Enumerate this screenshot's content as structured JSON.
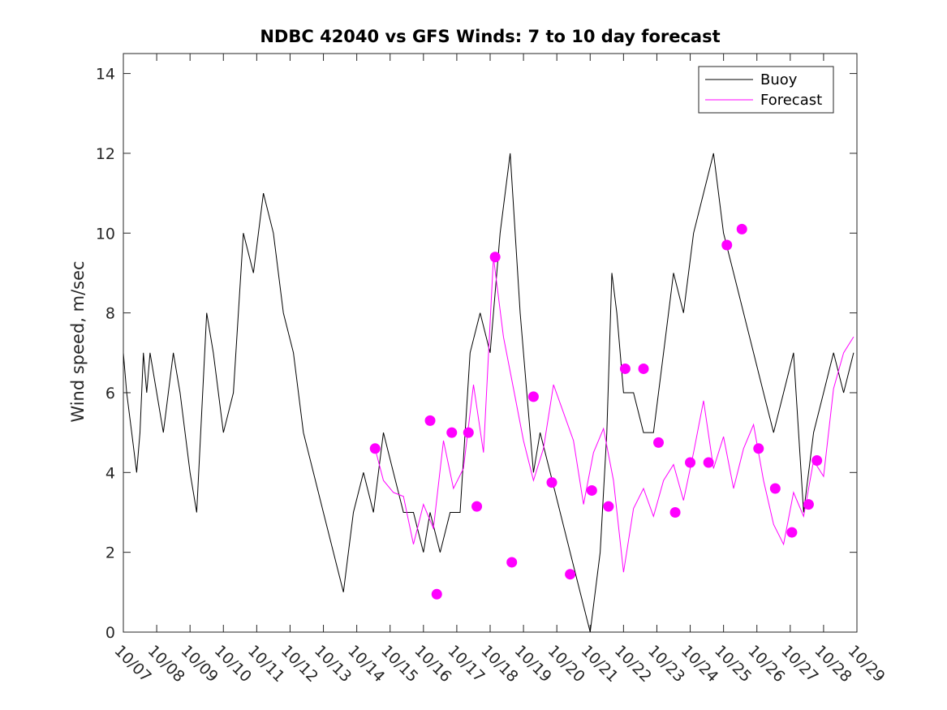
{
  "chart_data": {
    "type": "line",
    "title": "NDBC 42040 vs GFS Winds: 7 to 10 day forecast",
    "xlabel": "",
    "ylabel": "Wind speed, m/sec",
    "ylim": [
      0,
      14.5
    ],
    "yticks": [
      0,
      2,
      4,
      6,
      8,
      10,
      12,
      14
    ],
    "xlim": [
      0,
      22
    ],
    "xtick_labels": [
      "10/07",
      "10/08",
      "10/09",
      "10/10",
      "10/11",
      "10/12",
      "10/13",
      "10/14",
      "10/15",
      "10/16",
      "10/17",
      "10/18",
      "10/19",
      "10/20",
      "10/21",
      "10/22",
      "10/23",
      "10/24",
      "10/25",
      "10/26",
      "10/27",
      "10/28",
      "10/29"
    ],
    "legend": {
      "position": "top-right",
      "entries": [
        {
          "name": "Buoy",
          "color": "#000000"
        },
        {
          "name": "Forecast",
          "color": "#ff00ff"
        }
      ]
    },
    "series": [
      {
        "name": "Buoy",
        "color": "#000000",
        "x": [
          0,
          0.1,
          0.25,
          0.4,
          0.5,
          0.6,
          0.7,
          0.8,
          1,
          1.2,
          1.5,
          1.7,
          2,
          2.2,
          2.5,
          2.7,
          3,
          3.3,
          3.6,
          3.9,
          4.2,
          4.5,
          4.8,
          5.1,
          5.4,
          5.7,
          6,
          6.3,
          6.6,
          6.9,
          7.2,
          7.5,
          7.8,
          8.1,
          8.4,
          8.7,
          9,
          9.2,
          9.5,
          9.8,
          10.1,
          10.4,
          10.7,
          11,
          11.3,
          11.6,
          11.9,
          12.1,
          12.3,
          12.5,
          12.8,
          13.1,
          13.4,
          13.7,
          14,
          14.3,
          14.5,
          14.65,
          14.8,
          15,
          15.3,
          15.6,
          15.9,
          16.2,
          16.5,
          16.8,
          17.1,
          17.4,
          17.7,
          18,
          18.3,
          18.6,
          18.9,
          19.2,
          19.5,
          19.8,
          20.1,
          20.4,
          20.7,
          21,
          21.3,
          21.6,
          21.9
        ],
        "values": [
          7,
          6,
          5,
          4,
          5,
          7,
          6,
          7,
          6,
          5,
          7,
          6,
          4,
          3,
          8,
          7,
          5,
          6,
          10,
          9,
          11,
          10,
          8,
          7,
          5,
          4,
          3,
          2,
          1,
          3,
          4,
          3,
          5,
          4,
          3,
          3,
          2,
          3,
          2,
          3,
          3,
          7,
          8,
          7,
          10,
          12,
          8,
          6,
          4,
          5,
          4,
          3,
          2,
          1,
          0,
          2,
          5,
          9,
          8,
          6,
          6,
          5,
          5,
          7,
          9,
          8,
          10,
          11,
          12,
          10,
          9,
          8,
          7,
          6,
          5,
          6,
          7,
          3,
          5,
          6,
          7,
          6,
          7
        ]
      },
      {
        "name": "Forecast",
        "color": "#ff00ff",
        "x": [
          7.55,
          7.8,
          8.1,
          8.4,
          8.7,
          9.0,
          9.3,
          9.6,
          9.9,
          10.2,
          10.5,
          10.8,
          11.1,
          11.4,
          11.7,
          12.0,
          12.3,
          12.6,
          12.9,
          13.2,
          13.5,
          13.8,
          14.1,
          14.4,
          14.7,
          15.0,
          15.3,
          15.6,
          15.9,
          16.2,
          16.5,
          16.8,
          17.1,
          17.4,
          17.7,
          18.0,
          18.3,
          18.6,
          18.9,
          19.2,
          19.5,
          19.8,
          20.1,
          20.4,
          20.7,
          21.0,
          21.3,
          21.6,
          21.9
        ],
        "values": [
          4.6,
          3.8,
          3.5,
          3.4,
          2.2,
          3.2,
          2.6,
          4.8,
          3.6,
          4.1,
          6.2,
          4.5,
          9.4,
          7.4,
          6.1,
          4.8,
          3.8,
          4.6,
          6.2,
          5.5,
          4.8,
          3.2,
          4.5,
          5.1,
          3.8,
          1.5,
          3.1,
          3.6,
          2.9,
          3.8,
          4.2,
          3.3,
          4.5,
          5.8,
          4.1,
          4.9,
          3.6,
          4.6,
          5.2,
          3.8,
          2.7,
          2.2,
          3.5,
          2.9,
          4.3,
          3.9,
          6.1,
          7.0,
          7.4
        ]
      }
    ],
    "forecast_points": {
      "color": "#ff00ff",
      "x": [
        7.55,
        9.2,
        9.4,
        9.85,
        10.35,
        10.6,
        11.15,
        11.65,
        12.3,
        12.85,
        13.4,
        14.05,
        14.55,
        15.05,
        15.6,
        16.05,
        16.55,
        17.0,
        17.55,
        18.1,
        18.55,
        19.05,
        19.55,
        20.05,
        20.55,
        20.8
      ],
      "values": [
        4.6,
        5.3,
        0.95,
        5.0,
        5.0,
        3.15,
        9.4,
        1.75,
        5.9,
        3.75,
        1.45,
        3.55,
        3.15,
        6.6,
        6.6,
        4.75,
        3.0,
        4.25,
        4.25,
        9.7,
        10.1,
        4.6,
        3.6,
        2.5,
        3.2,
        4.3
      ]
    }
  }
}
